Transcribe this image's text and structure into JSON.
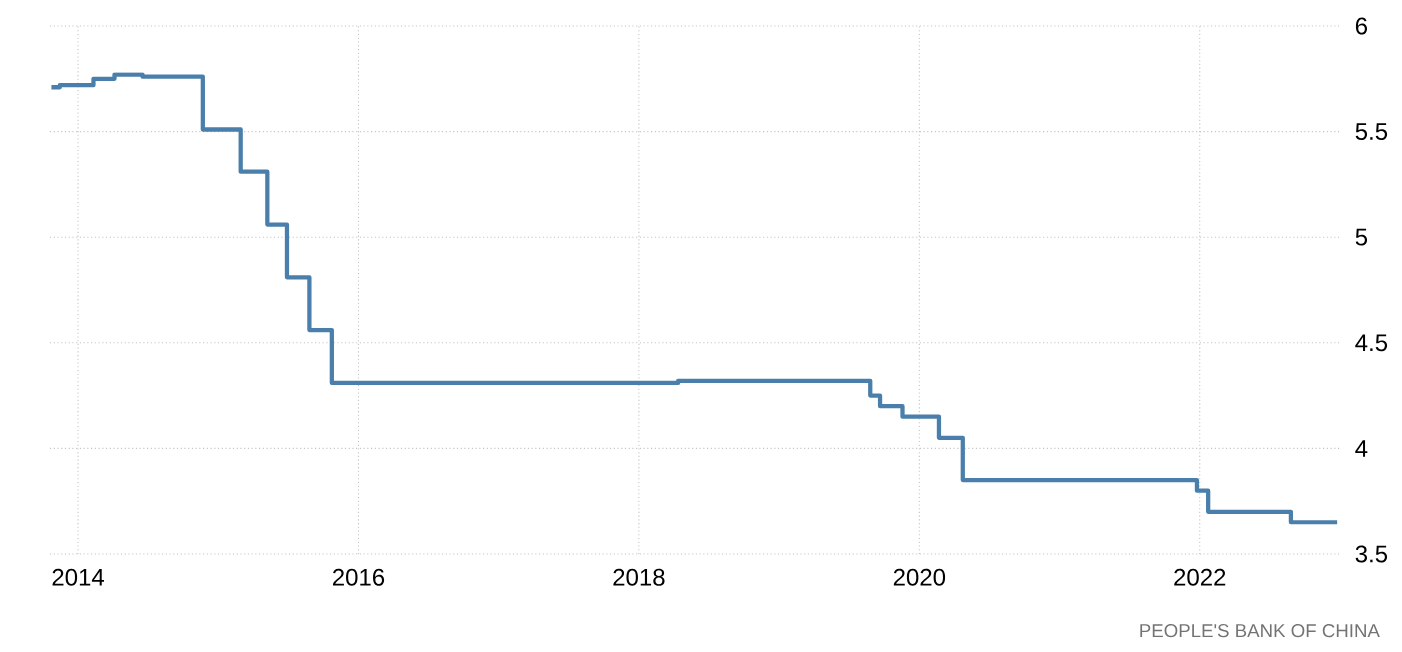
{
  "chart_data": {
    "type": "step",
    "x": [
      2013.81,
      2013.87,
      2014.11,
      2014.26,
      2014.46,
      2014.89,
      2015.16,
      2015.35,
      2015.49,
      2015.65,
      2015.81,
      2018.28,
      2019.65,
      2019.72,
      2019.88,
      2020.14,
      2020.31,
      2021.98,
      2022.06,
      2022.65,
      2022.98
    ],
    "values": [
      5.71,
      5.72,
      5.75,
      5.77,
      5.76,
      5.51,
      5.31,
      5.06,
      4.81,
      4.56,
      4.31,
      4.32,
      4.25,
      4.2,
      4.15,
      4.05,
      3.85,
      3.8,
      3.7,
      3.65,
      3.65
    ],
    "color": "#4a7fab",
    "xlim": [
      2013.8,
      2023.0
    ],
    "xticks": [
      2014,
      2016,
      2018,
      2020,
      2022
    ],
    "ylim": [
      3.5,
      6
    ],
    "yticks": [
      3.5,
      4,
      4.5,
      5,
      5.5,
      6
    ],
    "grid": true,
    "line_style": "solid",
    "annotations": [
      "PEOPLE'S BANK OF CHINA"
    ]
  }
}
